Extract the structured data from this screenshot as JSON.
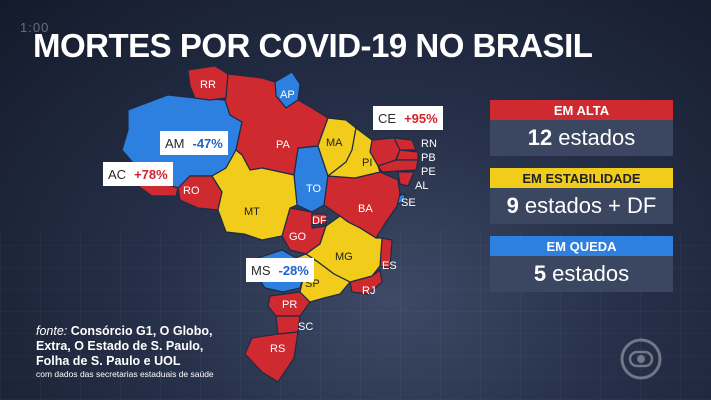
{
  "timer": "1:00",
  "title": "MORTES POR COVID-19 NO BRASIL",
  "states": {
    "RR": "RR",
    "AP": "AP",
    "AM": "AM",
    "PA": "PA",
    "MA": "MA",
    "CE": "CE",
    "RN": "RN",
    "PB": "PB",
    "PE": "PE",
    "AL": "AL",
    "SE": "SE",
    "PI": "PI",
    "TO": "TO",
    "BA": "BA",
    "AC": "AC",
    "RO": "RO",
    "MT": "MT",
    "DF": "DF",
    "GO": "GO",
    "MG": "MG",
    "ES": "ES",
    "MS": "MS",
    "SP": "SP",
    "RJ": "RJ",
    "PR": "PR",
    "SC": "SC",
    "RS": "RS"
  },
  "callouts": {
    "am": {
      "code": "AM",
      "value": "-47%"
    },
    "ac": {
      "code": "AC",
      "value": "+78%"
    },
    "ce": {
      "code": "CE",
      "value": "+95%"
    },
    "ms": {
      "code": "MS",
      "value": "-28%"
    }
  },
  "cards": {
    "alta": {
      "head": "EM ALTA",
      "count": "12",
      "unit": "estados"
    },
    "estabilidade": {
      "head": "EM ESTABILIDADE",
      "count": "9",
      "unit": "estados + DF"
    },
    "queda": {
      "head": "EM QUEDA",
      "count": "5",
      "unit": "estados"
    }
  },
  "source": {
    "prefix": "fonte:",
    "line1": "Consórcio G1, O Globo,",
    "line2": "Extra, O Estado de S. Paulo,",
    "line3": "Folha de S. Paulo e UOL",
    "note": "com dados das secretarias estaduais de saúde"
  },
  "colors": {
    "alta": "#cf2a2f",
    "estabilidade": "#f2cc1b",
    "queda": "#2d7fe0"
  }
}
